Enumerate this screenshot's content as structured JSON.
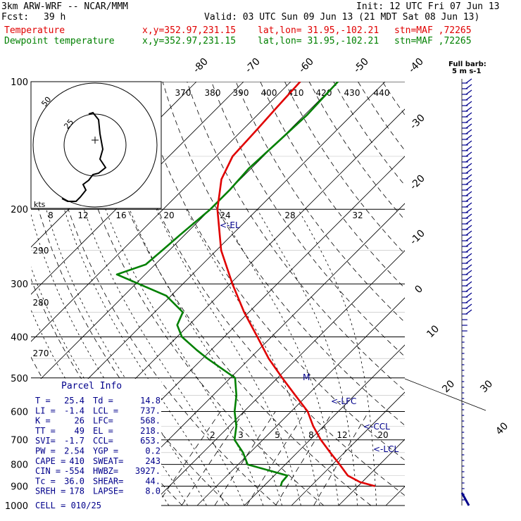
{
  "header": {
    "model": "3km ARW-WRF -- NCAR/MMM",
    "init": "Init: 12 UTC Fri 07 Jun 13",
    "fcst_label": "Fcst:",
    "fcst_value": "39 h",
    "valid": "Valid: 03 UTC Sun 09 Jun 13 (21 MDT Sat 08 Jun 13)",
    "temp_label": "Temperature",
    "dew_label": "Dewpoint temperature",
    "xy": "x,y=352.97,231.15",
    "latlon": "lat,lon= 31.95,-102.21",
    "stn": "stn=MAF ,72265"
  },
  "parcel_info": {
    "title": "Parcel Info",
    "rows": [
      [
        "T  =",
        "25.4",
        "Td =",
        "14.8"
      ],
      [
        "LI =",
        "-1.4",
        "LCL =",
        "737."
      ],
      [
        "K  =",
        "26",
        "LFC=",
        "568."
      ],
      [
        "TT =",
        "49",
        "EL =",
        "218."
      ],
      [
        "SVI=",
        "-1.7",
        "CCL=",
        "653."
      ],
      [
        "PW =",
        "2.54",
        "YGP =",
        "0.2"
      ],
      [
        "CAPE =",
        "410",
        "SWEAT=",
        "243"
      ],
      [
        "CIN =",
        "-554",
        "HWBZ=",
        "3927."
      ],
      [
        "Tc =",
        "36.0",
        "SHEAR=",
        "44."
      ],
      [
        "SREH =",
        "178",
        "LAPSE=",
        "8.0"
      ]
    ],
    "cell": "CELL = 010/25"
  },
  "wind_panel": {
    "title": "Full barb:",
    "subtitle": "5 m s-1"
  },
  "hodograph": {
    "units": "kts",
    "ring_labels": [
      "50",
      "25"
    ]
  },
  "chart_data": {
    "type": "skew-t",
    "pressure_labels": [
      100,
      200,
      300,
      400,
      500,
      600,
      700,
      800,
      900,
      1000
    ],
    "isotherm_labels": [
      "-80",
      "-70",
      "-60",
      "-50",
      "-40",
      "-30",
      "-20",
      "-10",
      "0",
      "10",
      "20",
      "30",
      "40"
    ],
    "dry_adiabat_labels": [
      "370",
      "380",
      "390",
      "400",
      "410",
      "420",
      "430",
      "440",
      "290",
      "280",
      "270"
    ],
    "moist_adiabat_labels": [
      "8",
      "12",
      "16",
      "20",
      "24",
      "28",
      "32"
    ],
    "mixing_ratio_labels": [
      "2",
      "3",
      "5",
      "8",
      "12",
      "20"
    ],
    "annotations": [
      "<-EL",
      "<-LFC",
      "<-CCL",
      "<-LCL",
      "M"
    ],
    "temperature": {
      "name": "Temperature",
      "color": "#e00000",
      "pressure": [
        900,
        880,
        850,
        800,
        750,
        700,
        650,
        600,
        550,
        500,
        450,
        400,
        350,
        300,
        250,
        200,
        170,
        150,
        130,
        115,
        100
      ],
      "value": [
        33.6,
        29.5,
        25.6,
        21.5,
        17.0,
        12.3,
        7.8,
        3.5,
        -2.5,
        -9.0,
        -16.0,
        -23.0,
        -31.0,
        -39.5,
        -49.0,
        -58.5,
        -64.0,
        -66.5,
        -67.0,
        -67.5,
        -68.0
      ]
    },
    "dewpoint": {
      "name": "Dewpoint temperature",
      "color": "#008000",
      "pressure": [
        900,
        880,
        850,
        800,
        750,
        700,
        650,
        600,
        550,
        500,
        450,
        430,
        400,
        375,
        350,
        320,
        285,
        270,
        250,
        230,
        200,
        180,
        160,
        140,
        120,
        100
      ],
      "value": [
        13.6,
        13.0,
        12.8,
        2.0,
        -1.5,
        -6.0,
        -8.5,
        -12.0,
        -15.0,
        -19.0,
        -29.0,
        -33.0,
        -39.0,
        -42.5,
        -44.0,
        -51.0,
        -66.0,
        -62.0,
        -61.5,
        -61.0,
        -60.0,
        -60.0,
        -60.5,
        -60.0,
        -59.5,
        -60.0
      ]
    },
    "axis": {
      "p_top": 100,
      "p_bottom": 1000,
      "log_p": true,
      "t_range_at_1000": [
        -20,
        45
      ]
    }
  }
}
